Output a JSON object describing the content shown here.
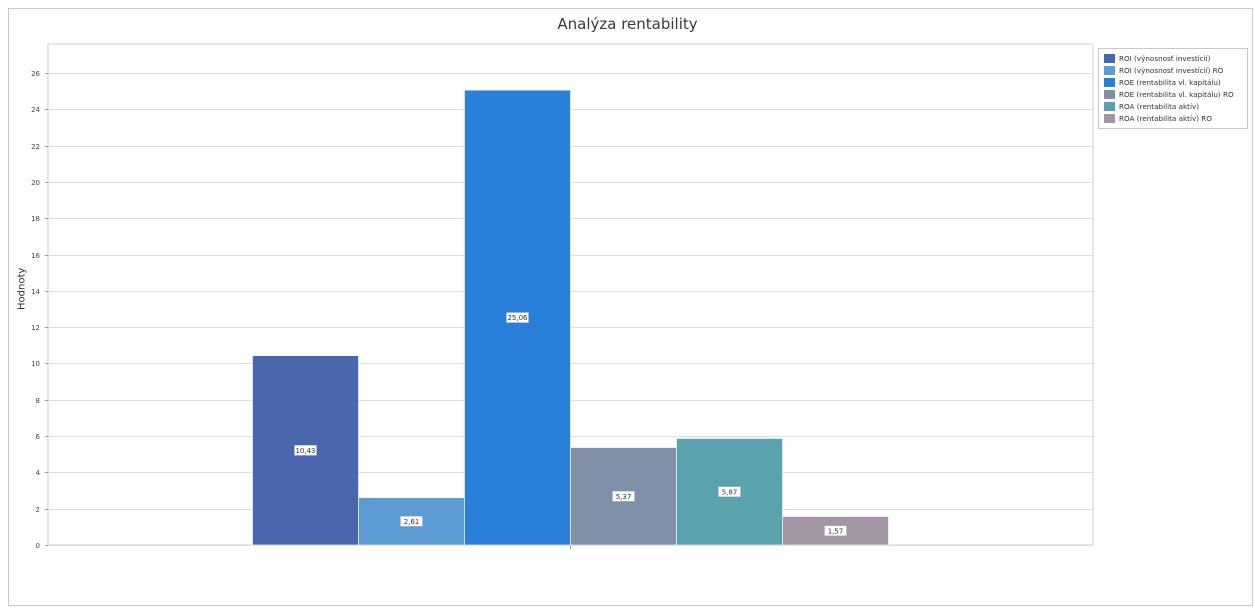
{
  "chart_data": {
    "type": "bar",
    "title": "Analýza rentability",
    "ylabel": "Hodnoty",
    "xlabel": "",
    "ylim": [
      0,
      27.6
    ],
    "yticks": [
      0,
      2,
      4,
      6,
      8,
      10,
      12,
      14,
      16,
      18,
      20,
      22,
      24,
      26
    ],
    "grid": true,
    "legend_position": "top-right",
    "series": [
      {
        "name": "ROI (výnosnosť investícií)",
        "value": 10.43,
        "label": "10,43",
        "color": "#4a66ae"
      },
      {
        "name": "ROI (výnosnosť investícií) RO",
        "value": 2.61,
        "label": "2,61",
        "color": "#5d9bd4"
      },
      {
        "name": "ROE (rentabilita vl. kapitálu)",
        "value": 25.06,
        "label": "25,06",
        "color": "#2a7fd8"
      },
      {
        "name": "ROE (rentabilita vl. kapitálu) RO",
        "value": 5.37,
        "label": "5,37",
        "color": "#8190a9"
      },
      {
        "name": "ROA (rentabilita aktív)",
        "value": 5.87,
        "label": "5,87",
        "color": "#5ba3ac"
      },
      {
        "name": "ROA (rentabilita aktív) RO",
        "value": 1.57,
        "label": "1,57",
        "color": "#a295a4"
      }
    ]
  }
}
